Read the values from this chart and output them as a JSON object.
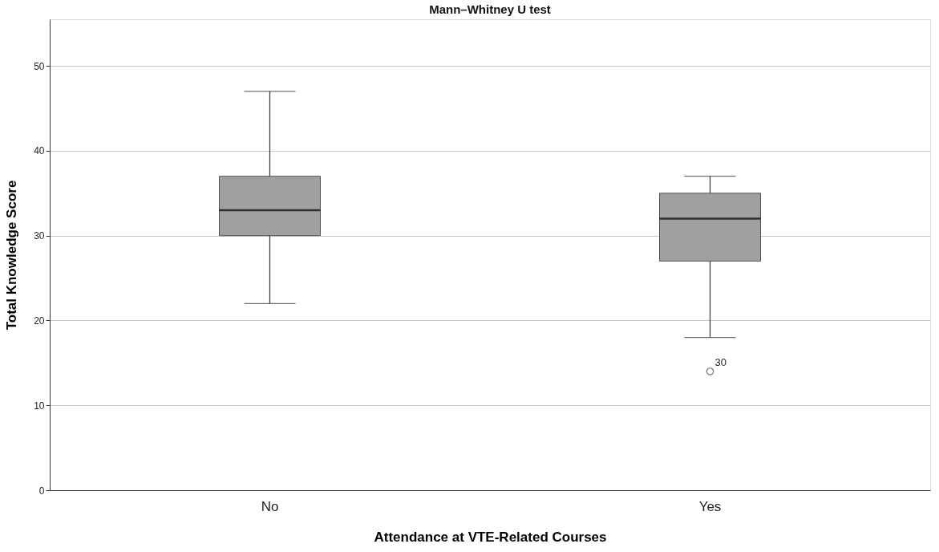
{
  "chart_data": {
    "type": "box",
    "title": "Mann–Whitney U test",
    "xlabel": "Attendance at VTE-Related Courses",
    "ylabel": "Total Knowledge Score",
    "categories": [
      "No",
      "Yes"
    ],
    "series": [
      {
        "color": "#a0a0a0",
        "boxes": [
          {
            "low": 22,
            "q1": 30,
            "median": 33,
            "q3": 37,
            "high": 47
          },
          {
            "low": 18,
            "q1": 27,
            "median": 32,
            "q3": 35,
            "high": 37,
            "outliers": [
              14
            ]
          }
        ]
      }
    ],
    "ylim": [
      0,
      55.5
    ],
    "yticks": [
      0,
      10,
      20,
      30,
      40,
      50
    ],
    "grid": "y",
    "annotations": [
      "30"
    ]
  }
}
